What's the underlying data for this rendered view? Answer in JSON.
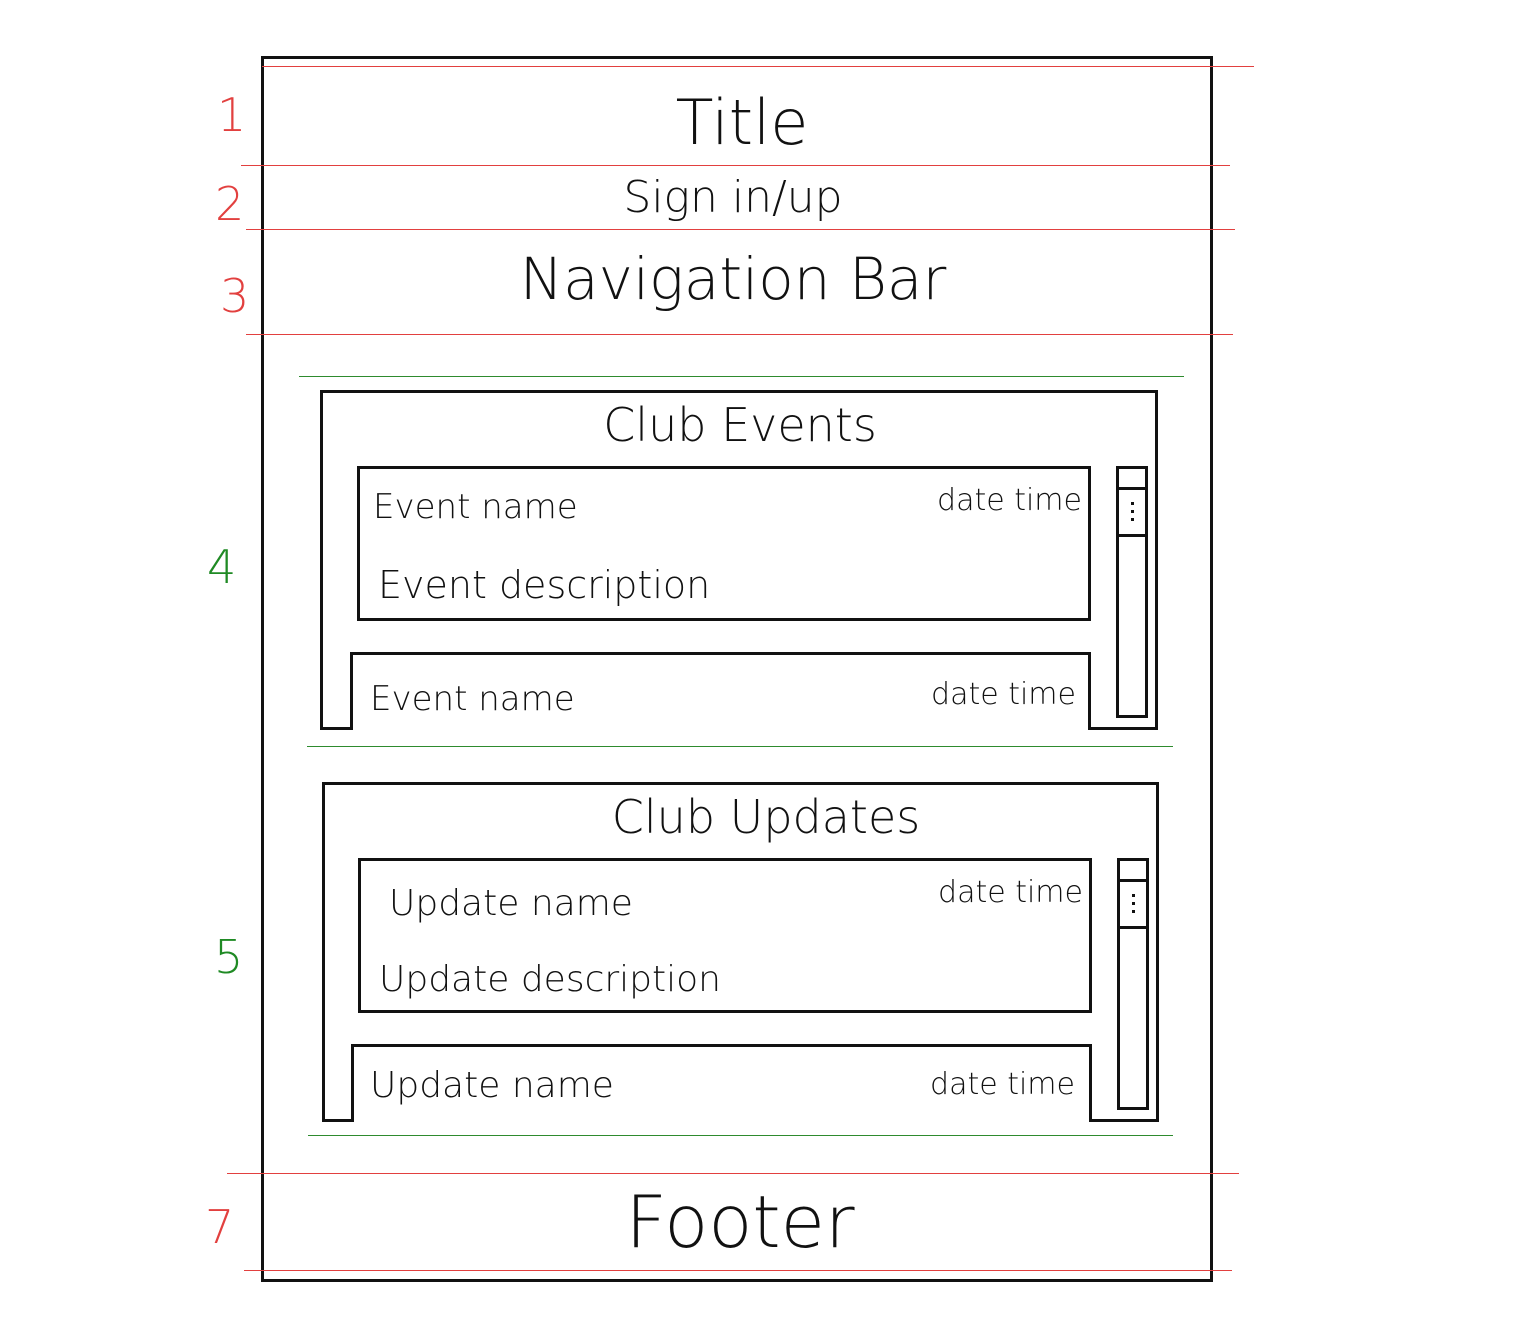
{
  "markers": [
    "1",
    "2",
    "3",
    "4",
    "5",
    "7"
  ],
  "header": {
    "title": "Title",
    "auth": "Sign  in/up"
  },
  "nav": {
    "label": "Navigation Bar"
  },
  "events": {
    "heading": "Club Events",
    "items": [
      {
        "name": "Event name",
        "datetime": "date time",
        "description": "Event description"
      },
      {
        "name": "Event name",
        "datetime": "date time"
      }
    ]
  },
  "updates": {
    "heading": "Club Updates",
    "items": [
      {
        "name": "Update name",
        "datetime": "date time",
        "description": "Update description"
      },
      {
        "name": "Update name",
        "datetime": "date time"
      }
    ]
  },
  "footer": {
    "label": "Footer"
  },
  "colors": {
    "section_guides": "#e2403f",
    "content_guides": "#2e8b2e",
    "ink": "#111111"
  }
}
